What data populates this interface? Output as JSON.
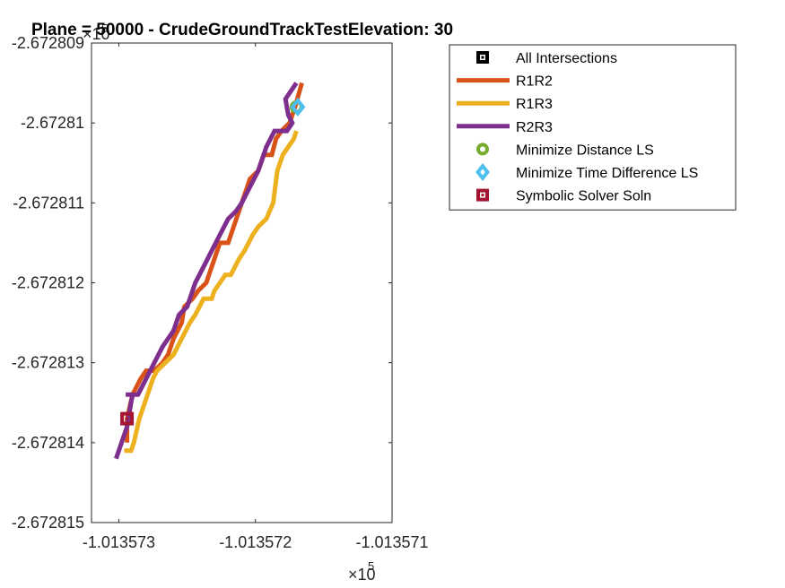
{
  "chart_data": {
    "type": "line",
    "title": "Plane = 50000 - CrudeGroundTrackTestElevation: 30",
    "xlabel": "",
    "ylabel": "",
    "x_exponent_label": "×10",
    "x_exponent_power": "5",
    "y_exponent_label": "×10",
    "y_exponent_power": "5",
    "xlim": [
      -1.0135732,
      -1.013571
    ],
    "ylim": [
      -2.672815,
      -2.672809
    ],
    "x_ticks": [
      {
        "value": -1.013573,
        "label": "-1.013573"
      },
      {
        "value": -1.013572,
        "label": "-1.013572"
      },
      {
        "value": -1.013571,
        "label": "-1.013571"
      }
    ],
    "y_ticks": [
      {
        "value": -2.672809,
        "label": "-2.672809"
      },
      {
        "value": -2.67281,
        "label": "-2.67281"
      },
      {
        "value": -2.672811,
        "label": "-2.672811"
      },
      {
        "value": -2.672812,
        "label": "-2.672812"
      },
      {
        "value": -2.672813,
        "label": "-2.672813"
      },
      {
        "value": -2.672814,
        "label": "-2.672814"
      },
      {
        "value": -2.672815,
        "label": "-2.672815"
      }
    ],
    "grid": false,
    "legend_position": "outside-right-top",
    "series": [
      {
        "name": "R1R2",
        "kind": "line",
        "color": "#D95319",
        "x": [
          -1.01357294,
          -1.01357294,
          -1.0135729,
          -1.01357284,
          -1.0135728,
          -1.01357274,
          -1.01357268,
          -1.01357264,
          -1.0135726,
          -1.01357254,
          -1.01357252,
          -1.01357246,
          -1.01357242,
          -1.01357236,
          -1.0135723,
          -1.01357226,
          -1.0135722,
          -1.01357216,
          -1.0135721,
          -1.01357206,
          -1.01357204,
          -1.01357198,
          -1.01357194,
          -1.01357188,
          -1.01357185,
          -1.01357181,
          -1.01357175,
          -1.01357171,
          -1.01357166
        ],
        "y": [
          -2.672814,
          -2.6728137,
          -2.6728134,
          -2.6728132,
          -2.6728131,
          -2.6728131,
          -2.672813,
          -2.6728129,
          -2.6728127,
          -2.6728125,
          -2.6728123,
          -2.6728122,
          -2.6728121,
          -2.672812,
          -2.6728117,
          -2.6728115,
          -2.6728115,
          -2.6728113,
          -2.672811,
          -2.6728108,
          -2.6728107,
          -2.6728106,
          -2.6728104,
          -2.6728104,
          -2.6728102,
          -2.6728101,
          -2.67281,
          -2.6728098,
          -2.6728095
        ]
      },
      {
        "name": "R1R3",
        "kind": "line",
        "color": "#EDB120",
        "x": [
          -1.01357296,
          -1.01357291,
          -1.01357289,
          -1.01357285,
          -1.01357281,
          -1.01357275,
          -1.01357272,
          -1.01357266,
          -1.0135726,
          -1.01357254,
          -1.01357248,
          -1.01357244,
          -1.01357238,
          -1.01357232,
          -1.0135723,
          -1.01357226,
          -1.01357222,
          -1.01357218,
          -1.01357212,
          -1.01357208,
          -1.01357202,
          -1.01357198,
          -1.01357192,
          -1.01357187,
          -1.01357184,
          -1.0135718,
          -1.01357176,
          -1.01357172,
          -1.0135717
        ],
        "y": [
          -2.6728141,
          -2.6728141,
          -2.672814,
          -2.6728137,
          -2.6728135,
          -2.6728132,
          -2.6728131,
          -2.672813,
          -2.6728129,
          -2.6728127,
          -2.6728125,
          -2.6728124,
          -2.6728122,
          -2.6728122,
          -2.6728121,
          -2.672812,
          -2.6728119,
          -2.6728119,
          -2.6728117,
          -2.6728116,
          -2.6728114,
          -2.6728113,
          -2.6728112,
          -2.672811,
          -2.6728106,
          -2.6728104,
          -2.6728103,
          -2.6728102,
          -2.6728101
        ]
      },
      {
        "name": "R2R3",
        "kind": "line",
        "color": "#7E2F8E",
        "x": [
          -1.01357302,
          -1.01357298,
          -1.01357294,
          -1.01357292,
          -1.0135729,
          -1.01357295,
          -1.01357292,
          -1.01357286,
          -1.0135728,
          -1.01357274,
          -1.01357268,
          -1.0135726,
          -1.01357256,
          -1.0135725,
          -1.01357244,
          -1.01357238,
          -1.01357232,
          -1.01357226,
          -1.0135722,
          -1.01357214,
          -1.0135721,
          -1.01357204,
          -1.01357198,
          -1.01357192,
          -1.01357186,
          -1.01357182,
          -1.01357177,
          -1.01357173,
          -1.01357176,
          -1.01357178,
          -1.01357174,
          -1.0135717
        ],
        "y": [
          -2.6728142,
          -2.672814,
          -2.6728138,
          -2.6728136,
          -2.6728134,
          -2.6728134,
          -2.6728134,
          -2.6728134,
          -2.6728132,
          -2.672813,
          -2.6728128,
          -2.6728126,
          -2.6728124,
          -2.6728123,
          -2.672812,
          -2.6728118,
          -2.6728116,
          -2.6728114,
          -2.6728112,
          -2.6728111,
          -2.672811,
          -2.6728108,
          -2.6728106,
          -2.6728103,
          -2.6728101,
          -2.6728101,
          -2.6728101,
          -2.67281,
          -2.6728099,
          -2.6728097,
          -2.6728096,
          -2.6728095
        ]
      }
    ],
    "markers": [
      {
        "name": "All Intersections",
        "symbol": "square",
        "color": "#000000",
        "x": [],
        "y": []
      },
      {
        "name": "Minimize Distance LS",
        "symbol": "circle",
        "color": "#77AC30",
        "x": [
          -1.0135717
        ],
        "y": [
          -2.6728098
        ]
      },
      {
        "name": "Minimize Time Difference LS",
        "symbol": "diamond",
        "color": "#4DBEEE",
        "x": [
          -1.01357169
        ],
        "y": [
          -2.6728098
        ]
      },
      {
        "name": "Symbolic Solver Soln",
        "symbol": "square",
        "color": "#A2142F",
        "x": [
          -1.01357294
        ],
        "y": [
          -2.6728137
        ]
      }
    ],
    "legend": [
      {
        "label": "All Intersections",
        "symbol": "square",
        "color": "#000000"
      },
      {
        "label": "R1R2",
        "symbol": "line",
        "color": "#D95319"
      },
      {
        "label": "R1R3",
        "symbol": "line",
        "color": "#EDB120"
      },
      {
        "label": "R2R3",
        "symbol": "line",
        "color": "#7E2F8E"
      },
      {
        "label": "Minimize Distance LS",
        "symbol": "circle",
        "color": "#77AC30"
      },
      {
        "label": "Minimize Time Difference LS",
        "symbol": "diamond",
        "color": "#4DBEEE"
      },
      {
        "label": "Symbolic Solver Soln",
        "symbol": "square",
        "color": "#A2142F"
      }
    ]
  }
}
